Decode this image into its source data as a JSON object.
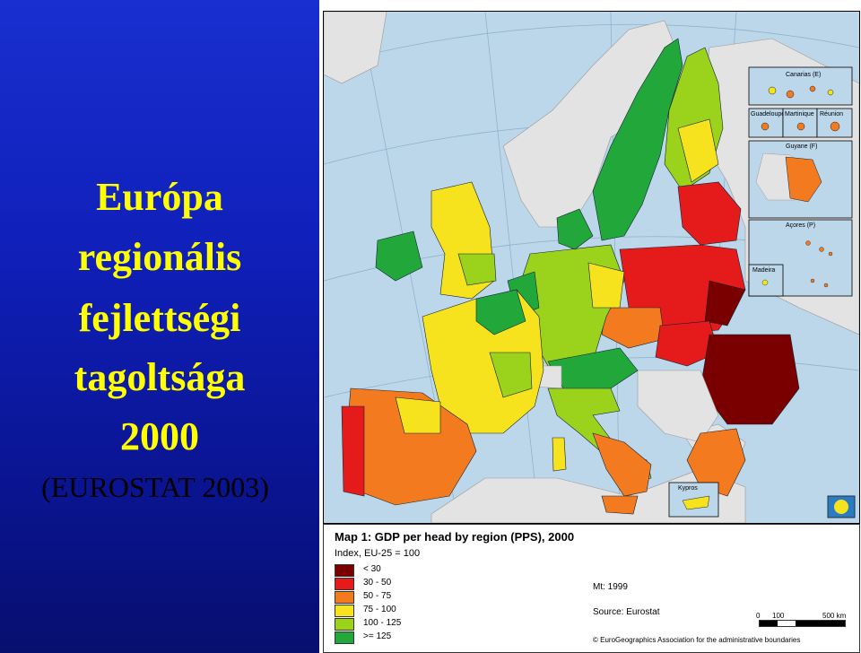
{
  "slide": {
    "title_lines": [
      "Európa",
      "regionális",
      "fejlettségi",
      "tagoltsága",
      "2000"
    ],
    "subtitle": "(EUROSTAT 2003)"
  },
  "map": {
    "insets": [
      "Canarias (E)",
      "Guadeloupe",
      "Martinique",
      "Réunion",
      "Guyane (F)",
      "Açores (P)",
      "Madeira",
      "Kypros"
    ]
  },
  "legend": {
    "title": "Map 1: GDP per head by region (PPS), 2000",
    "subtitle": "Index, EU-25 = 100",
    "classes": [
      {
        "label": "< 30",
        "color": "#7a0000"
      },
      {
        "label": "30 - 50",
        "color": "#e51b1b"
      },
      {
        "label": "50 - 75",
        "color": "#f47a1f"
      },
      {
        "label": "75 - 100",
        "color": "#f6e31e"
      },
      {
        "label": "100 - 125",
        "color": "#9ad21c"
      },
      {
        "label": ">= 125",
        "color": "#22a83a"
      }
    ],
    "mt_note": "Mt: 1999",
    "source": "Source: Eurostat",
    "scale": {
      "ticks": [
        "0",
        "100",
        "500 km"
      ]
    },
    "copyright": "© EuroGeographics Association for the administrative boundaries"
  },
  "colors": {
    "sea": "#bcd7ea",
    "non_eu_land": "#e8e8e8"
  }
}
